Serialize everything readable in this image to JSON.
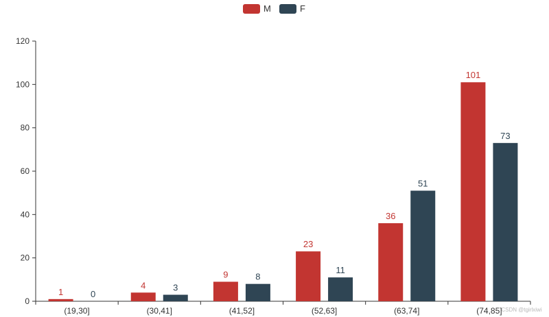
{
  "chart_data": {
    "type": "bar",
    "categories": [
      "(19,30]",
      "(30,41]",
      "(41,52]",
      "(52,63]",
      "(63,74]",
      "(74,85]"
    ],
    "series": [
      {
        "name": "M",
        "values": [
          1,
          4,
          9,
          23,
          36,
          101
        ],
        "color": "#c23531"
      },
      {
        "name": "F",
        "values": [
          0,
          3,
          8,
          11,
          51,
          73
        ],
        "color": "#2f4554"
      }
    ],
    "ylim": [
      0,
      120
    ],
    "yticks": [
      0,
      20,
      40,
      60,
      80,
      100,
      120
    ],
    "legend": "top-center",
    "grid": false,
    "data_labels": true
  },
  "watermark": "CSDN @tgirlxiwi"
}
